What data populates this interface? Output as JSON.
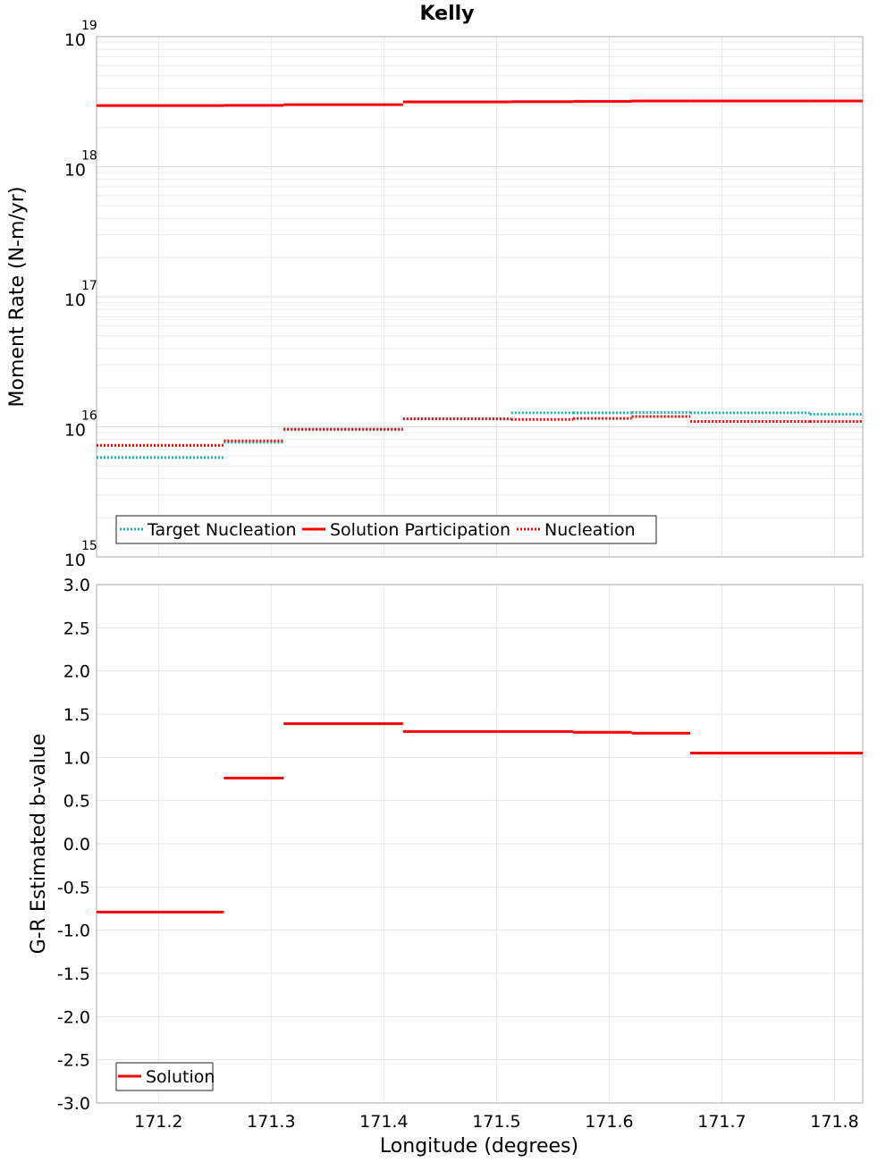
{
  "chart_data": [
    {
      "type": "line",
      "subtype": "step",
      "title": "Kelly",
      "ylabel": "Moment Rate (N-m/yr)",
      "yscale": "log",
      "ylim": [
        1000000000000000.0,
        1e+19
      ],
      "ytick_base": "10",
      "ytick_exponents": [
        "15",
        "16",
        "17",
        "18",
        "19"
      ],
      "xlim": [
        171.145,
        171.825
      ],
      "xticks": [
        "171.2",
        "171.3",
        "171.4",
        "171.5",
        "171.6",
        "171.7",
        "171.8"
      ],
      "series": [
        {
          "name": "Target Nucleation",
          "color": "#1ab3b3",
          "style": "dotted",
          "segments": [
            {
              "x0": 171.145,
              "x1": 171.258,
              "y": 5800000000000000.0
            },
            {
              "x0": 171.258,
              "x1": 171.311,
              "y": 7600000000000000.0
            },
            {
              "x0": 171.311,
              "x1": 171.417,
              "y": 9500000000000000.0
            },
            {
              "x0": 171.417,
              "x1": 171.513,
              "y": 1.15e+16
            },
            {
              "x0": 171.513,
              "x1": 171.568,
              "y": 1.28e+16
            },
            {
              "x0": 171.568,
              "x1": 171.62,
              "y": 1.28e+16
            },
            {
              "x0": 171.62,
              "x1": 171.672,
              "y": 1.29e+16
            },
            {
              "x0": 171.672,
              "x1": 171.778,
              "y": 1.28e+16
            },
            {
              "x0": 171.778,
              "x1": 171.825,
              "y": 1.25e+16
            }
          ]
        },
        {
          "name": "Solution Participation",
          "color": "#ff0000",
          "style": "solid",
          "segments": [
            {
              "x0": 171.145,
              "x1": 171.258,
              "y": 2.95e+18
            },
            {
              "x0": 171.258,
              "x1": 171.311,
              "y": 2.96e+18
            },
            {
              "x0": 171.311,
              "x1": 171.417,
              "y": 3e+18
            },
            {
              "x0": 171.417,
              "x1": 171.513,
              "y": 3.15e+18
            },
            {
              "x0": 171.513,
              "x1": 171.568,
              "y": 3.16e+18
            },
            {
              "x0": 171.568,
              "x1": 171.62,
              "y": 3.18e+18
            },
            {
              "x0": 171.62,
              "x1": 171.672,
              "y": 3.2e+18
            },
            {
              "x0": 171.672,
              "x1": 171.778,
              "y": 3.2e+18
            },
            {
              "x0": 171.778,
              "x1": 171.825,
              "y": 3.2e+18
            }
          ]
        },
        {
          "name": "Nucleation",
          "color": "#ff0000",
          "style": "dotted",
          "segments": [
            {
              "x0": 171.145,
              "x1": 171.258,
              "y": 7200000000000000.0
            },
            {
              "x0": 171.258,
              "x1": 171.311,
              "y": 7800000000000000.0
            },
            {
              "x0": 171.311,
              "x1": 171.417,
              "y": 9600000000000000.0
            },
            {
              "x0": 171.417,
              "x1": 171.513,
              "y": 1.15e+16
            },
            {
              "x0": 171.513,
              "x1": 171.568,
              "y": 1.14e+16
            },
            {
              "x0": 171.568,
              "x1": 171.62,
              "y": 1.16e+16
            },
            {
              "x0": 171.62,
              "x1": 171.672,
              "y": 1.2e+16
            },
            {
              "x0": 171.672,
              "x1": 171.778,
              "y": 1.1e+16
            },
            {
              "x0": 171.778,
              "x1": 171.825,
              "y": 1.1e+16
            }
          ]
        }
      ],
      "legend_position": "bottom-left"
    },
    {
      "type": "line",
      "subtype": "step",
      "title": "",
      "xlabel": "Longitude (degrees)",
      "ylabel": "G-R Estimated b-value",
      "ylim": [
        -3.0,
        3.0
      ],
      "yticks": [
        "3.0",
        "2.5",
        "2.0",
        "1.5",
        "1.0",
        "0.5",
        "0.0",
        "-0.5",
        "-1.0",
        "-1.5",
        "-2.0",
        "-2.5",
        "-3.0"
      ],
      "xlim": [
        171.145,
        171.825
      ],
      "xticks": [
        "171.2",
        "171.3",
        "171.4",
        "171.5",
        "171.6",
        "171.7",
        "171.8"
      ],
      "series": [
        {
          "name": "Solution",
          "color": "#ff0000",
          "style": "solid",
          "segments": [
            {
              "x0": 171.145,
              "x1": 171.258,
              "y": -0.79
            },
            {
              "x0": 171.258,
              "x1": 171.311,
              "y": 0.76
            },
            {
              "x0": 171.311,
              "x1": 171.417,
              "y": 1.39
            },
            {
              "x0": 171.417,
              "x1": 171.568,
              "y": 1.3
            },
            {
              "x0": 171.568,
              "x1": 171.62,
              "y": 1.29
            },
            {
              "x0": 171.62,
              "x1": 171.672,
              "y": 1.28
            },
            {
              "x0": 171.672,
              "x1": 171.825,
              "y": 1.05
            }
          ]
        }
      ],
      "legend_position": "bottom-left"
    }
  ]
}
